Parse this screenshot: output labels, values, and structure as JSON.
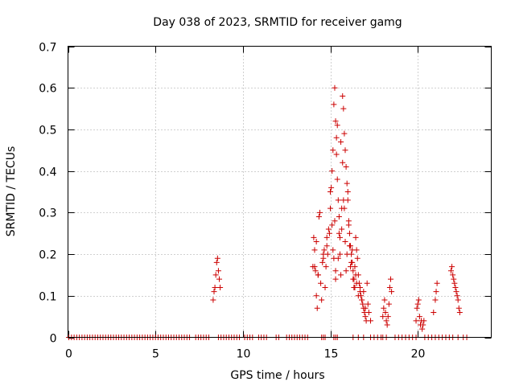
{
  "chart_data": {
    "type": "scatter",
    "title": "Day 038 of 2023, SRMTID for receiver gamg",
    "xlabel": "GPS time / hours",
    "ylabel": "SRMTID / TECUs",
    "xlim": [
      0,
      24.2
    ],
    "ylim": [
      0,
      0.7
    ],
    "xticks": [
      0,
      5,
      10,
      15,
      20
    ],
    "xtick_labels": [
      "0",
      "5",
      "10",
      "15",
      "20"
    ],
    "yticks": [
      0,
      0.1,
      0.2,
      0.3,
      0.4,
      0.5,
      0.6,
      0.7
    ],
    "ytick_labels": [
      "0",
      "0.1",
      "0.2",
      "0.3",
      "0.4",
      "0.5",
      "0.6",
      "0.7"
    ],
    "grid": true,
    "marker": "+",
    "color": "#cc0000",
    "series": [
      {
        "name": "SRMTID",
        "x": [
          0.05,
          0.2,
          0.35,
          0.5,
          0.65,
          0.8,
          0.95,
          1.1,
          1.25,
          1.4,
          1.55,
          1.7,
          1.85,
          2.0,
          2.15,
          2.3,
          2.45,
          2.6,
          2.75,
          2.9,
          3.05,
          3.2,
          3.35,
          3.5,
          3.65,
          3.8,
          3.95,
          4.1,
          4.25,
          4.4,
          4.55,
          4.7,
          4.85,
          5.0,
          5.15,
          5.3,
          5.45,
          5.6,
          5.75,
          5.9,
          6.05,
          6.2,
          6.35,
          6.5,
          6.65,
          6.8,
          6.95,
          7.3,
          7.45,
          7.6,
          7.75,
          7.9,
          8.05,
          8.6,
          8.75,
          8.9,
          9.05,
          9.2,
          9.35,
          9.5,
          9.65,
          9.8,
          10.1,
          10.25,
          10.4,
          10.55,
          10.9,
          11.05,
          11.2,
          11.35,
          11.9,
          12.05,
          12.5,
          12.65,
          12.8,
          12.95,
          13.1,
          13.25,
          13.4,
          13.55,
          13.7,
          14.5,
          14.6,
          14.7,
          15.2,
          15.3,
          15.4,
          16.3,
          16.6,
          16.9,
          17.3,
          17.5,
          17.7,
          17.9,
          18.0,
          18.2,
          18.7,
          18.9,
          19.1,
          19.3,
          19.5,
          19.7,
          19.9,
          20.4,
          20.6,
          20.8,
          21.0,
          21.2,
          21.4,
          21.6,
          21.8,
          22.0,
          22.3,
          22.6,
          22.8,
          8.3,
          8.35,
          8.4,
          8.45,
          8.5,
          8.55,
          8.6,
          8.65,
          8.7,
          14.0,
          14.05,
          14.1,
          14.15,
          14.2,
          14.25,
          14.3,
          14.35,
          14.4,
          14.45,
          14.5,
          14.55,
          14.6,
          14.65,
          14.7,
          14.75,
          14.8,
          14.85,
          14.9,
          14.95,
          15.0,
          15.05,
          15.1,
          15.15,
          15.2,
          15.25,
          15.3,
          15.35,
          15.4,
          15.45,
          15.5,
          15.55,
          15.6,
          15.65,
          15.7,
          15.75,
          15.8,
          15.85,
          15.9,
          15.95,
          16.0,
          16.05,
          16.1,
          16.15,
          16.2,
          16.25,
          16.3,
          16.35,
          16.4,
          16.45,
          16.5,
          16.55,
          16.6,
          16.65,
          16.7,
          16.75,
          16.8,
          16.85,
          16.9,
          16.95,
          17.0,
          17.05,
          17.1,
          17.15,
          17.2,
          17.3,
          18.0,
          18.05,
          18.1,
          18.15,
          18.2,
          18.25,
          18.3,
          18.35,
          18.4,
          18.45,
          18.5,
          19.9,
          19.95,
          20.0,
          20.05,
          20.1,
          20.15,
          20.2,
          20.25,
          20.3,
          20.35,
          20.9,
          21.0,
          21.05,
          21.1,
          21.9,
          21.95,
          22.0,
          22.05,
          22.1,
          22.15,
          22.2,
          22.25,
          22.3,
          22.35,
          22.4,
          14.1,
          14.2,
          14.3,
          14.6,
          14.8,
          15.0,
          15.1,
          15.2,
          15.3,
          15.5,
          15.6,
          15.7,
          15.8,
          16.0,
          16.1,
          16.2,
          16.3,
          16.4,
          16.5,
          16.6,
          16.7,
          16.8,
          16.9,
          17.0,
          15.15,
          15.25,
          15.3,
          15.35,
          15.4,
          15.45,
          15.55,
          15.65,
          15.75,
          15.85,
          15.9,
          15.95,
          16.05,
          16.15,
          16.25,
          16.35,
          16.45
        ],
        "y": [
          0,
          0,
          0,
          0,
          0,
          0,
          0,
          0,
          0,
          0,
          0,
          0,
          0,
          0,
          0,
          0,
          0,
          0,
          0,
          0,
          0,
          0,
          0,
          0,
          0,
          0,
          0,
          0,
          0,
          0,
          0,
          0,
          0,
          0,
          0,
          0,
          0,
          0,
          0,
          0,
          0,
          0,
          0,
          0,
          0,
          0,
          0,
          0,
          0,
          0,
          0,
          0,
          0,
          0,
          0,
          0,
          0,
          0,
          0,
          0,
          0,
          0,
          0,
          0,
          0,
          0,
          0,
          0,
          0,
          0,
          0,
          0,
          0,
          0,
          0,
          0,
          0,
          0,
          0,
          0,
          0,
          0,
          0,
          0,
          0,
          0,
          0,
          0,
          0,
          0,
          0,
          0,
          0,
          0,
          0,
          0,
          0,
          0,
          0,
          0,
          0,
          0,
          0,
          0,
          0,
          0,
          0,
          0,
          0,
          0,
          0,
          0,
          0,
          0,
          0,
          0.09,
          0.11,
          0.12,
          0.15,
          0.18,
          0.19,
          0.16,
          0.14,
          0.12,
          0.17,
          0.24,
          0.21,
          0.16,
          0.1,
          0.07,
          0.15,
          0.29,
          0.3,
          0.13,
          0.09,
          0.18,
          0.19,
          0.21,
          0.12,
          0.17,
          0.22,
          0.2,
          0.26,
          0.25,
          0.31,
          0.36,
          0.4,
          0.45,
          0.56,
          0.6,
          0.52,
          0.48,
          0.38,
          0.33,
          0.25,
          0.2,
          0.15,
          0.31,
          0.58,
          0.55,
          0.49,
          0.45,
          0.41,
          0.37,
          0.35,
          0.28,
          0.25,
          0.22,
          0.2,
          0.18,
          0.16,
          0.14,
          0.12,
          0.24,
          0.21,
          0.19,
          0.15,
          0.13,
          0.11,
          0.1,
          0.09,
          0.08,
          0.07,
          0.06,
          0.05,
          0.04,
          0.13,
          0.08,
          0.06,
          0.04,
          0.05,
          0.07,
          0.09,
          0.06,
          0.04,
          0.03,
          0.05,
          0.08,
          0.12,
          0.14,
          0.11,
          0.04,
          0.07,
          0.08,
          0.09,
          0.05,
          0.03,
          0.04,
          0.02,
          0.03,
          0.04,
          0.06,
          0.09,
          0.11,
          0.13,
          0.16,
          0.17,
          0.15,
          0.14,
          0.13,
          0.12,
          0.11,
          0.1,
          0.09,
          0.07,
          0.06,
          0.17,
          0.23,
          0.15,
          0.2,
          0.24,
          0.35,
          0.27,
          0.19,
          0.16,
          0.29,
          0.47,
          0.42,
          0.31,
          0.33,
          0.22,
          0.18,
          0.14,
          0.17,
          0.13,
          0.1,
          0.12,
          0.09,
          0.11,
          0.07,
          0.21,
          0.28,
          0.14,
          0.44,
          0.51,
          0.19,
          0.24,
          0.26,
          0.33,
          0.23,
          0.16,
          0.2,
          0.27,
          0.17,
          0.21,
          0.12,
          0.15
        ]
      }
    ]
  }
}
